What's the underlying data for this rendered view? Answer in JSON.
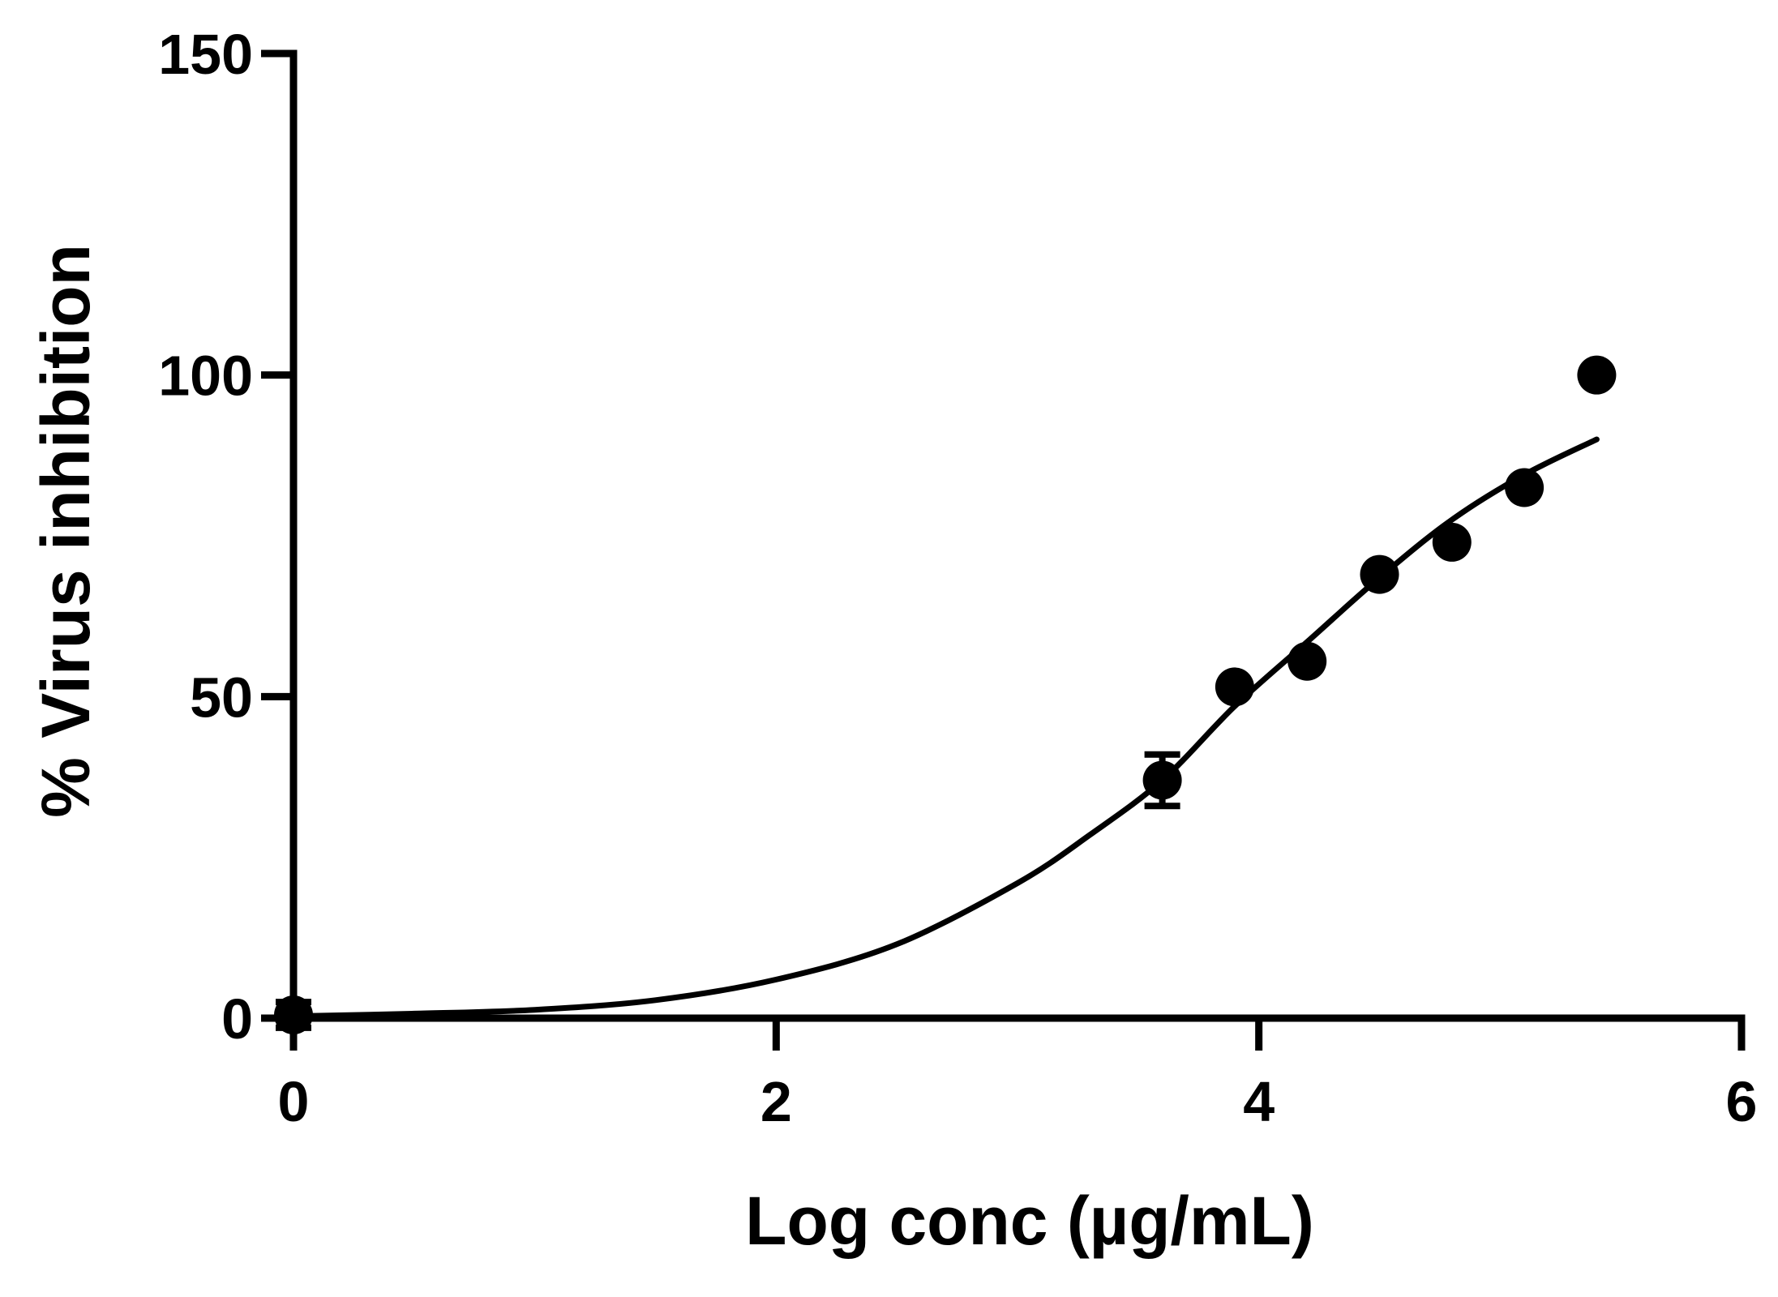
{
  "chart_data": {
    "type": "scatter",
    "title": "",
    "xlabel": "Log conc (µg/mL)",
    "ylabel": "% Virus inhibition",
    "xlim": [
      0,
      6
    ],
    "ylim": [
      0,
      150
    ],
    "x_ticks": [
      0,
      2,
      4,
      6
    ],
    "x_tick_labels": [
      "0",
      "2",
      "4",
      "6"
    ],
    "y_ticks": [
      0,
      50,
      100,
      150
    ],
    "y_tick_labels": [
      "0",
      "50",
      "100",
      "150"
    ],
    "grid": false,
    "legend": "none",
    "series": [
      {
        "points": [
          {
            "x": 0.0,
            "y": 0.5,
            "err": 2
          },
          {
            "x": 3.6,
            "y": 37,
            "err": 4
          },
          {
            "x": 3.9,
            "y": 51.5,
            "err": 0
          },
          {
            "x": 4.2,
            "y": 55.5,
            "err": 0
          },
          {
            "x": 4.5,
            "y": 69,
            "err": 0
          },
          {
            "x": 4.8,
            "y": 74,
            "err": 0
          },
          {
            "x": 5.1,
            "y": 82.5,
            "err": 0
          },
          {
            "x": 5.4,
            "y": 100,
            "err": 0
          }
        ]
      }
    ],
    "fit_curve": {
      "x": [
        0,
        0.5,
        1.0,
        1.5,
        2.0,
        2.5,
        3.0,
        3.3,
        3.6,
        3.9,
        4.2,
        4.5,
        4.8,
        5.1,
        5.4
      ],
      "y": [
        0.3,
        0.7,
        1.3,
        2.8,
        6,
        11.5,
        21,
        28.5,
        37,
        48.5,
        58.5,
        68.5,
        77.5,
        84.5,
        90
      ]
    },
    "colors": {
      "marks": "#000000",
      "background": "#ffffff"
    }
  }
}
